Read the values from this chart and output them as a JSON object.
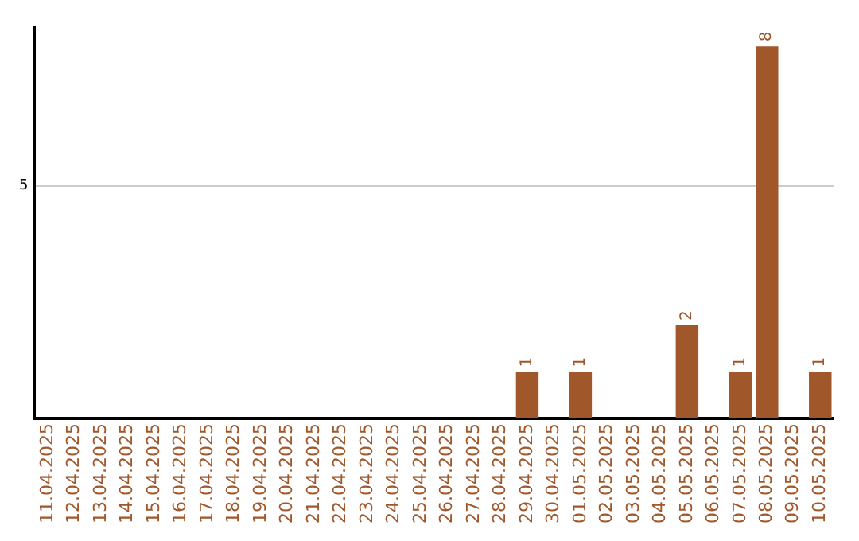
{
  "chart_data": {
    "type": "bar",
    "ylim": [
      0,
      8.4
    ],
    "categories": [
      "11.04.2025",
      "12.04.2025",
      "13.04.2025",
      "14.04.2025",
      "15.04.2025",
      "16.04.2025",
      "17.04.2025",
      "18.04.2025",
      "19.04.2025",
      "20.04.2025",
      "21.04.2025",
      "22.04.2025",
      "23.04.2025",
      "24.04.2025",
      "25.04.2025",
      "26.04.2025",
      "27.04.2025",
      "28.04.2025",
      "29.04.2025",
      "30.04.2025",
      "01.05.2025",
      "02.05.2025",
      "03.05.2025",
      "04.05.2025",
      "05.05.2025",
      "06.05.2025",
      "07.05.2025",
      "08.05.2025",
      "09.05.2025",
      "10.05.2025"
    ],
    "values": [
      null,
      null,
      null,
      null,
      null,
      null,
      null,
      null,
      null,
      null,
      null,
      null,
      null,
      null,
      null,
      null,
      null,
      null,
      1,
      null,
      1,
      null,
      null,
      null,
      2,
      null,
      1,
      8,
      null,
      1
    ],
    "value_labels": [
      null,
      null,
      null,
      null,
      null,
      null,
      null,
      null,
      null,
      null,
      null,
      null,
      null,
      null,
      null,
      null,
      null,
      null,
      "1",
      null,
      "1",
      null,
      null,
      null,
      "2",
      null,
      "1",
      "8",
      null,
      "1"
    ],
    "color": "#a0572a",
    "yticks": [
      {
        "value": 0,
        "label": null
      },
      5
    ],
    "grid": "y",
    "legend": false
  }
}
